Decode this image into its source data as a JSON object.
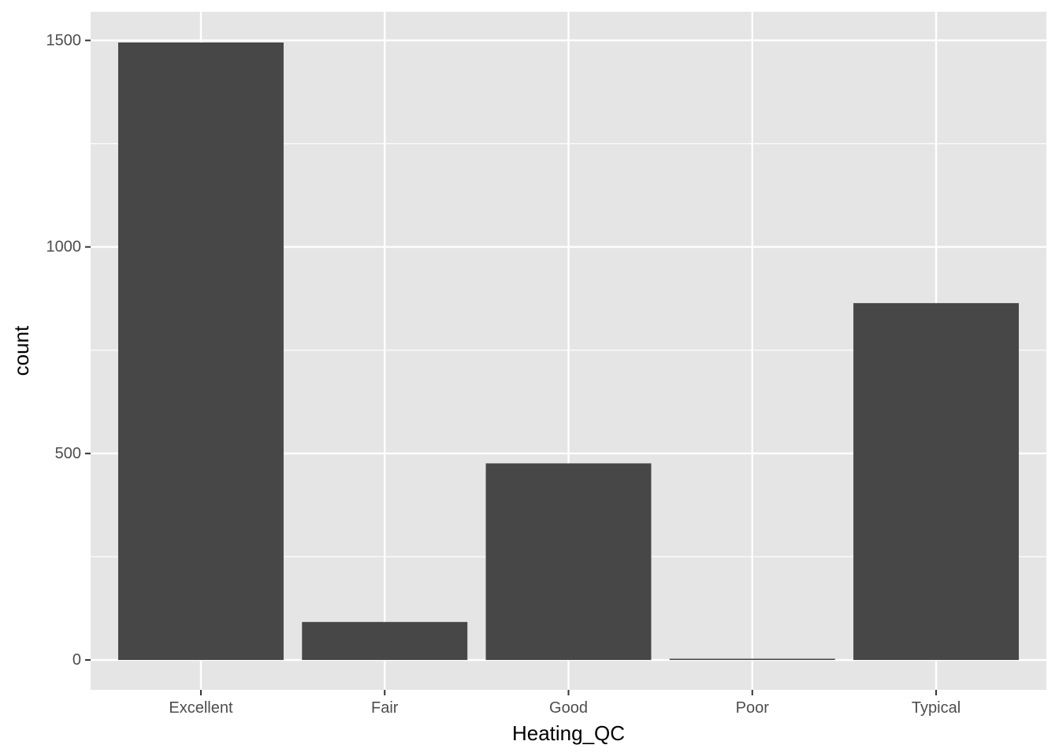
{
  "chart_data": {
    "type": "bar",
    "title": "",
    "xlabel": "Heating_QC",
    "ylabel": "count",
    "categories": [
      "Excellent",
      "Fair",
      "Good",
      "Poor",
      "Typical"
    ],
    "values": [
      1495,
      92,
      476,
      3,
      864
    ],
    "ylim": [
      -72.35,
      1569.3
    ],
    "yticks": [
      0,
      500,
      1000,
      1500
    ],
    "yticks_minor": [
      250,
      750,
      1250
    ],
    "grid": true,
    "legend": "none",
    "colors": {
      "panel_background": "#e5e5e5",
      "grid_line": "#ffffff",
      "bar_fill": "#474747",
      "tick_text": "#4d4d4d",
      "tick_mark": "#333333",
      "axis_title_text": "#000000"
    }
  }
}
